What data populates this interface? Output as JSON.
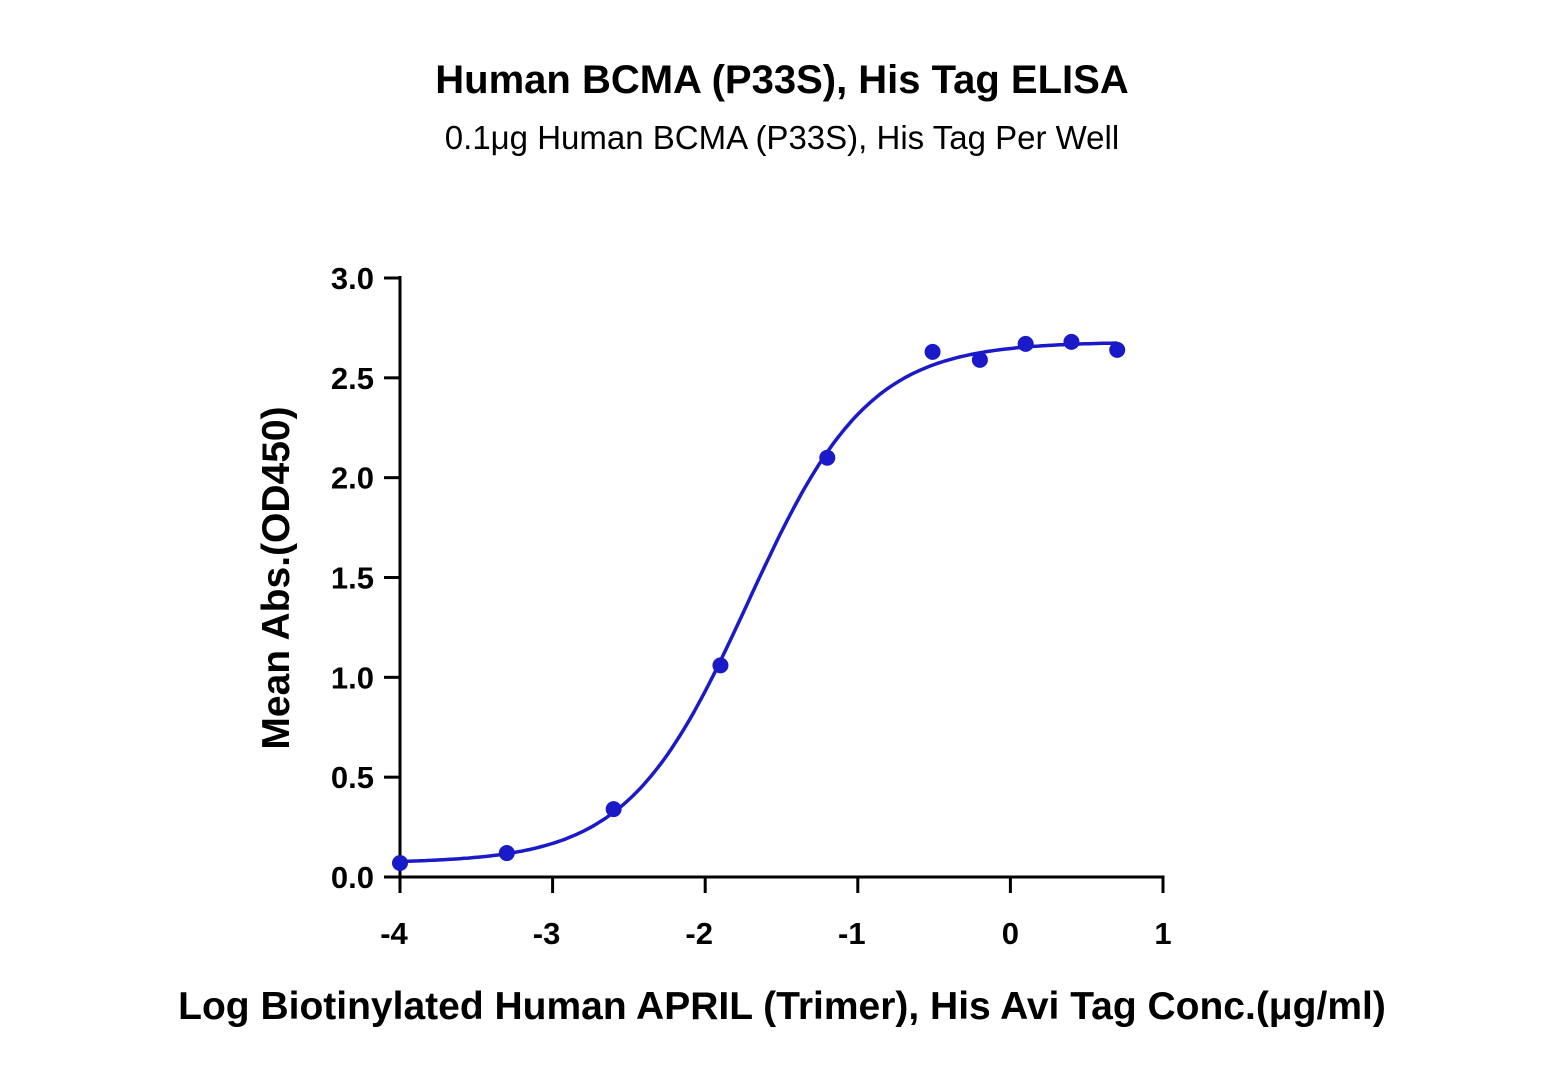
{
  "chart_data": {
    "type": "scatter",
    "title": "Human BCMA (P33S), His Tag ELISA",
    "subtitle": "0.1μg Human BCMA (P33S), His Tag Per Well",
    "xlabel": "Log Biotinylated Human APRIL (Trimer), His Avi Tag Conc.(μg/ml)",
    "ylabel": "Mean Abs.(OD450)",
    "xlim": [
      -4,
      1
    ],
    "ylim": [
      0,
      3.0
    ],
    "xticks": [
      "-4",
      "-3",
      "-2",
      "-1",
      "0",
      "1"
    ],
    "yticks": [
      "0.0",
      "0.5",
      "1.0",
      "1.5",
      "2.0",
      "2.5",
      "3.0"
    ],
    "grid": false,
    "color": "#1a1ac8",
    "series": [
      {
        "x": [
          -4.0,
          -3.3,
          -2.6,
          -1.9,
          -1.2,
          -0.51,
          -0.2,
          0.1,
          0.4,
          0.7
        ],
        "y": [
          0.07,
          0.12,
          0.34,
          1.06,
          2.1,
          2.63,
          2.59,
          2.67,
          2.68,
          2.64
        ]
      }
    ],
    "fit": {
      "model": "4PL",
      "bottom": 0.07,
      "top": 2.68,
      "logEC50": -1.72,
      "hill": 1.1
    }
  }
}
